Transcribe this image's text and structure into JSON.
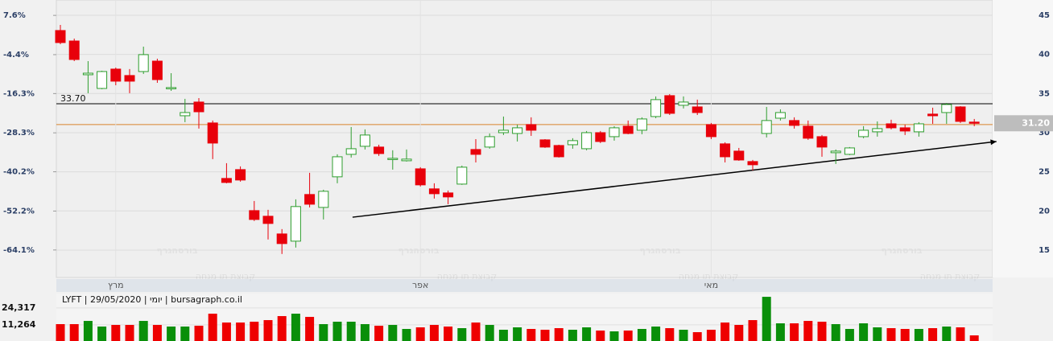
{
  "chart_data": [
    {
      "type": "candlestick",
      "categories": [
        null,
        null,
        null,
        null,
        "מרץ",
        null,
        null,
        null,
        null,
        null,
        null,
        null,
        null,
        null,
        null,
        null,
        null,
        null,
        null,
        null,
        null,
        null,
        null,
        null,
        null,
        null,
        "אפר",
        null,
        null,
        null,
        null,
        null,
        null,
        null,
        null,
        null,
        null,
        null,
        null,
        null,
        null,
        null,
        null,
        null,
        null,
        null,
        null,
        "מאי",
        null,
        null,
        null,
        null,
        null,
        null,
        null,
        null,
        null,
        null,
        null,
        null,
        null,
        null,
        null,
        null,
        null,
        null,
        null
      ],
      "open": [
        43.05,
        41.71,
        37.4,
        35.65,
        38.12,
        37.3,
        37.81,
        39.14,
        35.65,
        32.16,
        33.91,
        31.24,
        24.15,
        25.28,
        20.04,
        19.32,
        17.06,
        16.14,
        22.1,
        20.45,
        24.36,
        27.23,
        28.26,
        28.16,
        26.62,
        26.41,
        25.38,
        22.82,
        22.3,
        23.43,
        27.85,
        28.16,
        30.0,
        29.9,
        31.03,
        29.08,
        28.36,
        28.46,
        27.95,
        30.0,
        29.49,
        30.83,
        30.31,
        32.06,
        34.73,
        33.5,
        33.29,
        31.03,
        28.57,
        27.64,
        26.31,
        29.9,
        31.85,
        31.55,
        30.83,
        29.49,
        27.44,
        27.23,
        29.49,
        30.11,
        31.13,
        30.62,
        30.11,
        32.37,
        32.57,
        33.29,
        31.35
      ],
      "high": [
        43.77,
        42.02,
        39.14,
        37.91,
        38.32,
        38.12,
        40.99,
        39.45,
        37.6,
        34.32,
        34.42,
        31.55,
        26.1,
        25.69,
        21.27,
        20.15,
        17.68,
        21.48,
        24.87,
        22.71,
        27.23,
        30.72,
        30.42,
        28.46,
        27.75,
        27.85,
        25.59,
        23.53,
        22.61,
        25.79,
        29.18,
        29.9,
        32.06,
        31.03,
        31.96,
        29.18,
        28.46,
        29.29,
        30.21,
        30.21,
        30.83,
        31.55,
        31.96,
        34.63,
        34.93,
        34.63,
        34.22,
        31.24,
        28.77,
        28.05,
        26.51,
        33.29,
        32.98,
        31.96,
        31.55,
        29.7,
        27.85,
        28.16,
        30.83,
        31.44,
        31.65,
        31.03,
        31.34,
        33.19,
        33.8,
        33.39,
        31.75
      ],
      "low": [
        41.3,
        39.14,
        35.04,
        35.55,
        36.06,
        35.04,
        37.5,
        36.37,
        35.34,
        31.34,
        30.52,
        26.62,
        23.53,
        23.74,
        18.71,
        16.35,
        14.5,
        15.32,
        20.45,
        18.91,
        23.53,
        26.82,
        27.85,
        27.03,
        25.28,
        26.31,
        23.12,
        21.58,
        20.86,
        23.33,
        26.2,
        27.95,
        29.7,
        28.87,
        29.59,
        28.05,
        26.82,
        27.95,
        27.75,
        28.67,
        28.98,
        29.8,
        29.8,
        31.85,
        32.26,
        33.09,
        32.26,
        29.18,
        26.2,
        26.41,
        25.18,
        29.39,
        31.55,
        30.52,
        29.08,
        26.92,
        26.0,
        27.13,
        29.29,
        29.49,
        30.42,
        29.7,
        29.49,
        31.13,
        31.13,
        31.24,
        30.83
      ],
      "close": [
        41.51,
        39.35,
        37.6,
        37.81,
        36.58,
        36.58,
        39.97,
        36.78,
        35.76,
        32.57,
        32.67,
        28.67,
        23.64,
        23.95,
        18.91,
        18.4,
        15.83,
        20.56,
        20.86,
        22.51,
        26.92,
        27.95,
        29.7,
        27.33,
        26.72,
        26.62,
        23.33,
        22.2,
        21.79,
        25.59,
        27.23,
        29.49,
        30.31,
        30.62,
        30.31,
        28.16,
        26.92,
        28.98,
        30.0,
        28.87,
        30.62,
        29.9,
        31.75,
        34.22,
        32.47,
        33.91,
        32.57,
        29.49,
        26.92,
        26.51,
        25.9,
        31.55,
        32.57,
        30.93,
        29.29,
        28.16,
        27.64,
        28.05,
        30.31,
        30.52,
        30.62,
        30.21,
        31.13,
        32.16,
        33.6,
        31.44,
        31.2
      ],
      "up_color": "#2e9e2e",
      "down_color": "#e8000b",
      "ylim": [
        11.5,
        46.95
      ],
      "yticks": [
        45,
        40,
        35,
        30,
        25,
        20,
        15
      ],
      "y2lim": [
        -72.5,
        12.3
      ],
      "y2ticks": [
        {
          "value": 7.6,
          "label": "7.6%"
        },
        {
          "value": -4.4,
          "label": "-4.4%"
        },
        {
          "value": -16.3,
          "label": "-16.3%"
        },
        {
          "value": -28.3,
          "label": "-28.3%"
        },
        {
          "value": -40.2,
          "label": "-40.2%"
        },
        {
          "value": -52.2,
          "label": "-52.2%"
        },
        {
          "value": -64.1,
          "label": "-64.1%"
        }
      ],
      "grid": true,
      "hlines": [
        {
          "value": 33.7,
          "label": "33.70",
          "color": "#000000"
        },
        {
          "value": 31.03,
          "color": "#d9822b"
        }
      ],
      "trendline": {
        "x": [
          21.1,
          67.6
        ],
        "y": [
          19.2,
          28.87
        ],
        "color": "#000000"
      },
      "last_price": {
        "value": 31.2,
        "label": "31.20"
      },
      "watermark": "בורסהגרף",
      "watermark_sub": "קבוצת תו מנחה"
    },
    {
      "type": "volume",
      "title": "LYFT | 29/05/2020 | יומי | bursagraph.co.il",
      "values": [
        11809,
        11809,
        14295,
        9944,
        11187,
        11187,
        14295,
        11187,
        9944,
        9944,
        10566,
        19888,
        13052,
        13052,
        13673,
        14916,
        18024,
        19888,
        17402,
        11809,
        13673,
        13673,
        11809,
        10566,
        11187,
        8080,
        9323,
        11187,
        9944,
        8701,
        13052,
        11187,
        7458,
        9323,
        8080,
        7458,
        8701,
        7458,
        9323,
        6837,
        6215,
        6837,
        8080,
        9944,
        8701,
        7458,
        5594,
        7458,
        13052,
        11187,
        14916,
        32940,
        12430,
        12430,
        14295,
        13673,
        11809,
        8080,
        12430,
        9323,
        8701,
        8080,
        8080,
        8701,
        9944,
        9323,
        3108
      ],
      "ylim": [
        0,
        33600
      ],
      "yticks": [
        {
          "value": 24317,
          "label": "24,317"
        },
        {
          "value": 11264,
          "label": "11,264"
        }
      ]
    }
  ]
}
